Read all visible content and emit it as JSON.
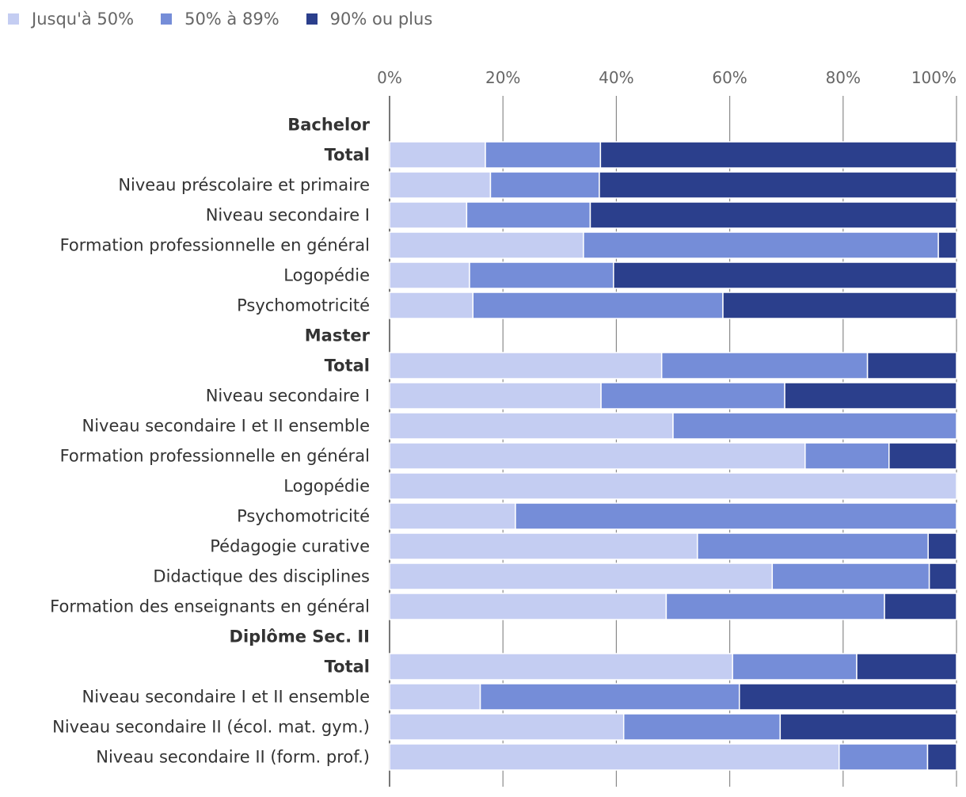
{
  "chart_data": {
    "type": "bar",
    "orientation": "horizontal",
    "stacked": true,
    "xlim": [
      0,
      100
    ],
    "x_ticks": [
      "0%",
      "20%",
      "40%",
      "60%",
      "80%",
      "100%"
    ],
    "grid": true,
    "legend_position": "top-left",
    "series": [
      {
        "name": "Jusqu'à 50%",
        "color": "#c4cdf2"
      },
      {
        "name": "50% à 89%",
        "color": "#758dd8"
      },
      {
        "name": "90% ou plus",
        "color": "#2b3f8c"
      }
    ],
    "rows": [
      {
        "label": "Bachelor",
        "header": true
      },
      {
        "label": "Total",
        "bold": true,
        "values": [
          16.9,
          20.3,
          62.8
        ]
      },
      {
        "label": "Niveau préscolaire et primaire",
        "values": [
          17.8,
          19.2,
          63.0
        ]
      },
      {
        "label": "Niveau secondaire I",
        "values": [
          13.6,
          21.8,
          64.6
        ]
      },
      {
        "label": "Formation professionnelle en général",
        "values": [
          34.2,
          62.6,
          3.2
        ]
      },
      {
        "label": "Logopédie",
        "values": [
          14.1,
          25.4,
          60.5
        ]
      },
      {
        "label": "Psychomotricité",
        "values": [
          14.7,
          44.1,
          41.2
        ]
      },
      {
        "label": "Master",
        "header": true
      },
      {
        "label": "Total",
        "bold": true,
        "values": [
          48.0,
          36.3,
          15.7
        ]
      },
      {
        "label": "Niveau secondaire I",
        "values": [
          37.3,
          32.4,
          30.3
        ]
      },
      {
        "label": "Niveau secondaire I et II ensemble",
        "values": [
          50.0,
          50.0,
          0
        ]
      },
      {
        "label": "Formation professionnelle en général",
        "values": [
          73.3,
          14.8,
          11.9
        ]
      },
      {
        "label": "Logopédie",
        "values": [
          100,
          0,
          0
        ]
      },
      {
        "label": "Psychomotricité",
        "values": [
          22.2,
          77.8,
          0
        ]
      },
      {
        "label": "Pédagogie curative",
        "values": [
          54.3,
          40.7,
          5.0
        ]
      },
      {
        "label": "Didactique des disciplines",
        "values": [
          67.5,
          27.7,
          4.8
        ]
      },
      {
        "label": "Formation des enseignants en général",
        "values": [
          48.8,
          38.5,
          12.7
        ]
      },
      {
        "label": "Diplôme Sec. II",
        "header": true
      },
      {
        "label": "Total",
        "bold": true,
        "values": [
          60.5,
          21.9,
          17.6
        ]
      },
      {
        "label": "Niveau secondaire I et II ensemble",
        "values": [
          16.0,
          45.7,
          38.3
        ]
      },
      {
        "label": "Niveau secondaire II (écol. mat. gym.)",
        "values": [
          41.3,
          27.6,
          31.1
        ]
      },
      {
        "label": "Niveau secondaire II (form. prof.)",
        "values": [
          79.3,
          15.6,
          5.1
        ]
      }
    ]
  }
}
